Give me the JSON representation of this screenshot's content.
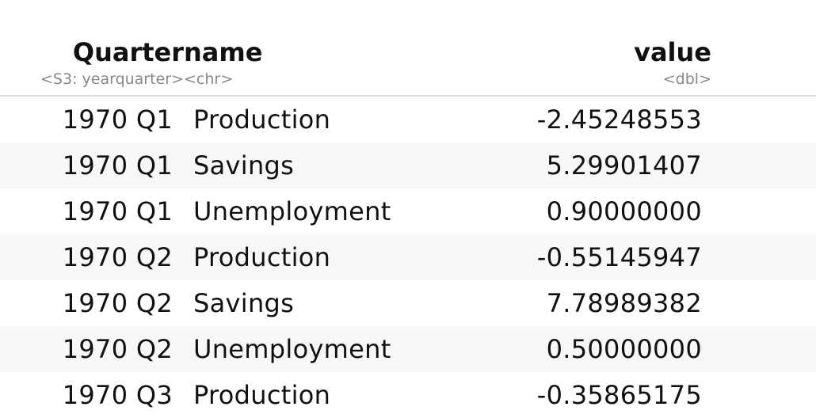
{
  "columns": [
    {
      "name": "Quarter",
      "type": "<S3: yearquarter>"
    },
    {
      "name": "name",
      "type": "<chr>"
    },
    {
      "name": "value",
      "type": "<dbl>"
    }
  ],
  "rows": [
    {
      "quarter": "1970 Q1",
      "name": "Production",
      "value": "-2.45248553"
    },
    {
      "quarter": "1970 Q1",
      "name": "Savings",
      "value": "5.29901407"
    },
    {
      "quarter": "1970 Q1",
      "name": "Unemployment",
      "value": "0.90000000"
    },
    {
      "quarter": "1970 Q2",
      "name": "Production",
      "value": "-0.55145947"
    },
    {
      "quarter": "1970 Q2",
      "name": "Savings",
      "value": "7.78989382"
    },
    {
      "quarter": "1970 Q2",
      "name": "Unemployment",
      "value": "0.50000000"
    },
    {
      "quarter": "1970 Q3",
      "name": "Production",
      "value": "-0.35865175"
    }
  ]
}
